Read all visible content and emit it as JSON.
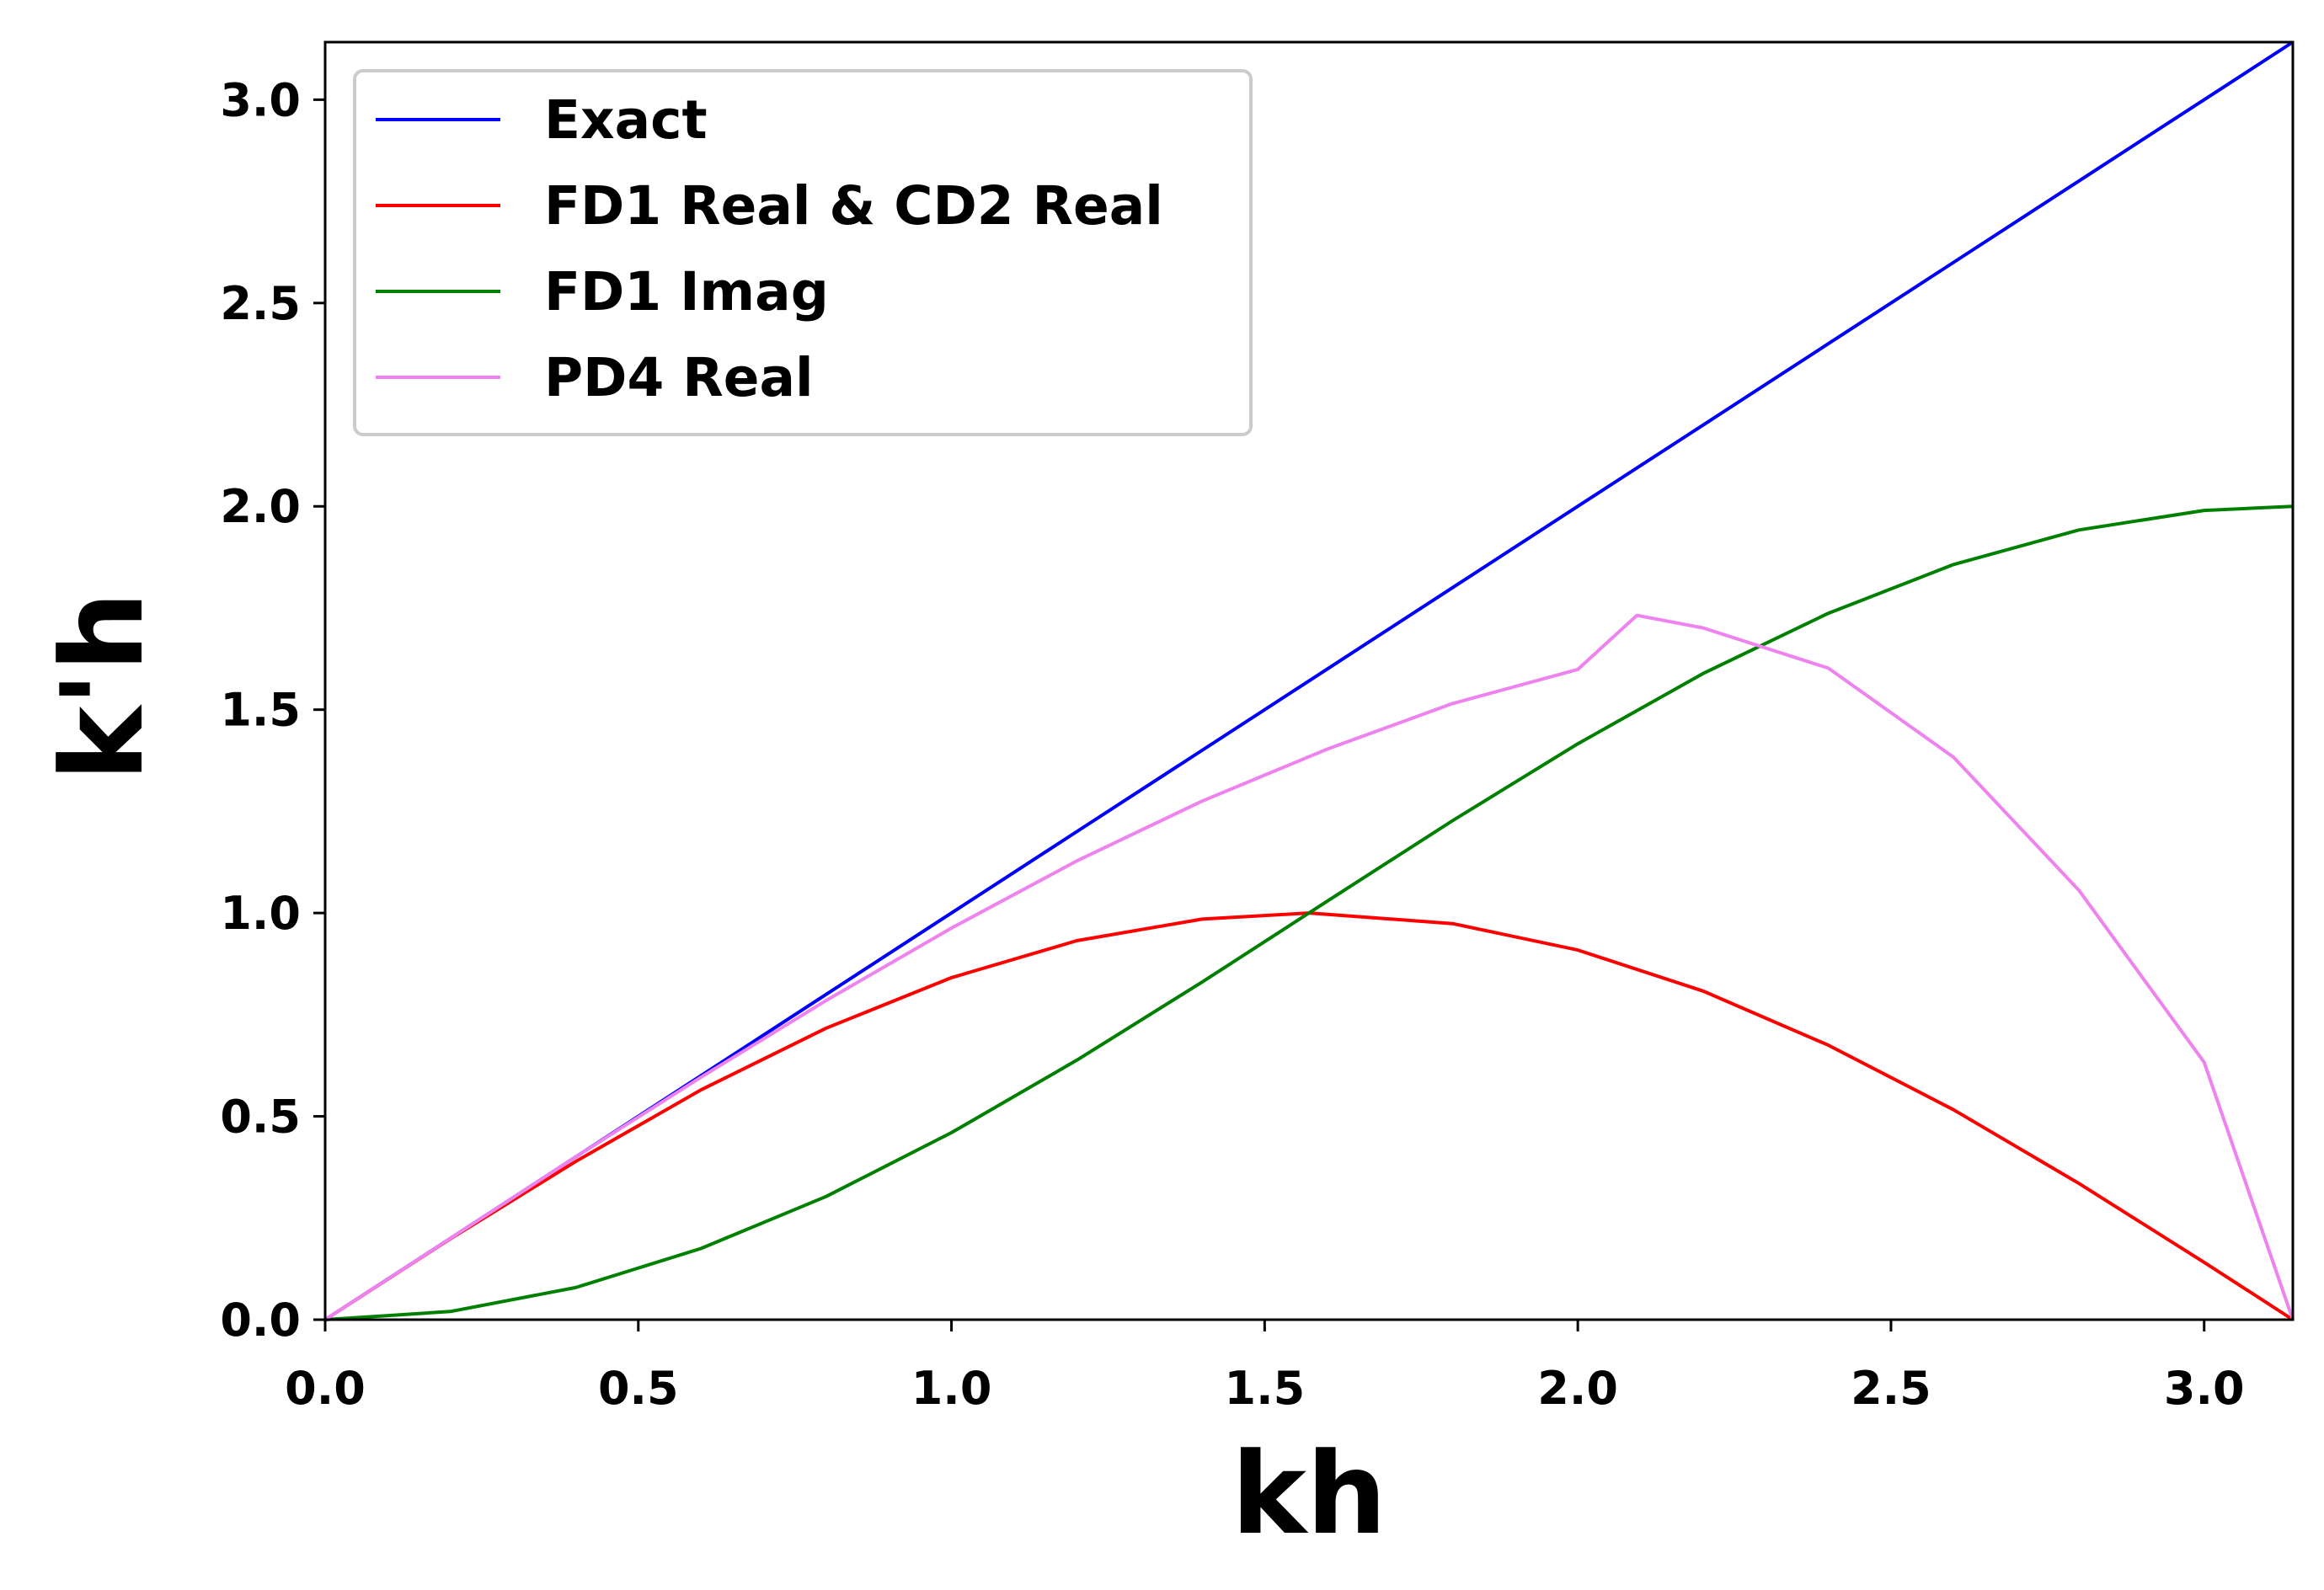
{
  "chart_data": {
    "type": "line",
    "title": "",
    "xlabel": "kh",
    "ylabel": "k'h",
    "xlim": [
      0,
      3.14159
    ],
    "ylim": [
      0,
      3.14159
    ],
    "xticks": [
      0.0,
      0.5,
      1.0,
      1.5,
      2.0,
      2.5,
      3.0
    ],
    "yticks": [
      0.0,
      0.5,
      1.0,
      1.5,
      2.0,
      2.5,
      3.0
    ],
    "xtick_labels": [
      "0.0",
      "0.5",
      "1.0",
      "1.5",
      "2.0",
      "2.5",
      "3.0"
    ],
    "ytick_labels": [
      "0.0",
      "0.5",
      "1.0",
      "1.5",
      "2.0",
      "2.5",
      "3.0"
    ],
    "grid": false,
    "legend_position": "top-left",
    "series": [
      {
        "name": "Exact",
        "color": "#0000ff",
        "x": [
          0.0,
          0.2,
          0.4,
          0.6,
          0.8,
          1.0,
          1.2,
          1.4,
          1.6,
          1.8,
          2.0,
          2.2,
          2.4,
          2.6,
          2.8,
          3.0,
          3.14159
        ],
        "y": [
          0.0,
          0.2,
          0.4,
          0.6,
          0.8,
          1.0,
          1.2,
          1.4,
          1.6,
          1.8,
          2.0,
          2.2,
          2.4,
          2.6,
          2.8,
          3.0,
          3.14159
        ]
      },
      {
        "name": "FD1 Real & CD2 Real",
        "color": "#ff0000",
        "x": [
          0.0,
          0.2,
          0.4,
          0.6,
          0.8,
          1.0,
          1.2,
          1.4,
          1.5708,
          1.8,
          2.0,
          2.2,
          2.4,
          2.6,
          2.8,
          3.0,
          3.14159
        ],
        "y": [
          0.0,
          0.199,
          0.389,
          0.565,
          0.717,
          0.841,
          0.932,
          0.985,
          1.0,
          0.974,
          0.909,
          0.808,
          0.675,
          0.516,
          0.335,
          0.141,
          0.0
        ]
      },
      {
        "name": "FD1 Imag",
        "color": "#008000",
        "x": [
          0.0,
          0.2,
          0.4,
          0.6,
          0.8,
          1.0,
          1.2,
          1.4,
          1.6,
          1.8,
          2.0,
          2.2,
          2.4,
          2.6,
          2.8,
          3.0,
          3.14159
        ],
        "y": [
          0.0,
          0.02,
          0.079,
          0.175,
          0.303,
          0.46,
          0.638,
          0.83,
          1.029,
          1.227,
          1.416,
          1.589,
          1.737,
          1.857,
          1.942,
          1.99,
          2.0
        ]
      },
      {
        "name": "PD4 Real",
        "color": "#ee82ee",
        "x": [
          0.0,
          0.2,
          0.4,
          0.6,
          0.8,
          1.0,
          1.2,
          1.4,
          1.6,
          1.8,
          2.0,
          2.0944,
          2.2,
          2.4,
          2.6,
          2.8,
          3.0,
          3.14159
        ],
        "y": [
          0.0,
          0.2,
          0.4,
          0.596,
          0.785,
          0.963,
          1.128,
          1.275,
          1.403,
          1.515,
          1.599,
          1.732,
          1.701,
          1.602,
          1.383,
          1.056,
          0.633,
          0.0
        ]
      }
    ]
  }
}
